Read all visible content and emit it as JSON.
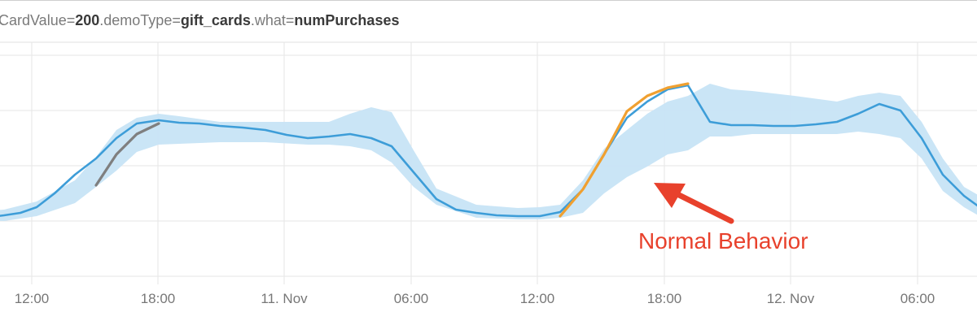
{
  "title": {
    "k1": "CardValue=",
    "v1": "200",
    "k2": ".demoType=",
    "v2": "gift_cards",
    "k3": ".what=",
    "v3": "numPurchases"
  },
  "chart_data": {
    "type": "line",
    "x_ticks": [
      "12:00",
      "18:00",
      "11. Nov",
      "06:00",
      "12:00",
      "18:00",
      "12. Nov",
      "06:00"
    ],
    "grid": true,
    "series": [
      {
        "role": "actual",
        "color": "#3d9dd8",
        "points": [
          [
            -50,
            263
          ],
          [
            -30,
            266
          ],
          [
            -11,
            267
          ],
          [
            5,
            265
          ],
          [
            25,
            262
          ],
          [
            45,
            255
          ],
          [
            67,
            238
          ],
          [
            92,
            215
          ],
          [
            118,
            195
          ],
          [
            143,
            170
          ],
          [
            168,
            152
          ],
          [
            195,
            148
          ],
          [
            220,
            151
          ],
          [
            245,
            152
          ],
          [
            270,
            155
          ],
          [
            298,
            157
          ],
          [
            326,
            160
          ],
          [
            352,
            166
          ],
          [
            378,
            170
          ],
          [
            404,
            168
          ],
          [
            430,
            165
          ],
          [
            456,
            170
          ],
          [
            481,
            180
          ],
          [
            508,
            212
          ],
          [
            536,
            245
          ],
          [
            560,
            258
          ],
          [
            585,
            262
          ],
          [
            610,
            265
          ],
          [
            636,
            266
          ],
          [
            663,
            266
          ],
          [
            688,
            261
          ],
          [
            716,
            233
          ],
          [
            742,
            190
          ],
          [
            770,
            145
          ],
          [
            795,
            125
          ],
          [
            820,
            110
          ],
          [
            845,
            105
          ],
          [
            872,
            150
          ],
          [
            898,
            154
          ],
          [
            924,
            154
          ],
          [
            950,
            155
          ],
          [
            976,
            155
          ],
          [
            1002,
            153
          ],
          [
            1028,
            150
          ],
          [
            1054,
            140
          ],
          [
            1080,
            128
          ],
          [
            1106,
            136
          ],
          [
            1132,
            170
          ],
          [
            1158,
            215
          ],
          [
            1184,
            241
          ],
          [
            1210,
            260
          ]
        ]
      },
      {
        "role": "highlight-gray",
        "color": "#7f7f7f",
        "points": [
          [
            118,
            228
          ],
          [
            143,
            190
          ],
          [
            168,
            165
          ],
          [
            195,
            152
          ]
        ]
      },
      {
        "role": "anomaly",
        "color": "#f0a030",
        "points": [
          [
            688,
            266
          ],
          [
            716,
            233
          ],
          [
            742,
            190
          ],
          [
            770,
            137
          ],
          [
            795,
            118
          ],
          [
            820,
            108
          ],
          [
            845,
            103
          ]
        ]
      }
    ],
    "band": {
      "color": "#c7e4f6",
      "upper": [
        [
          -50,
          262
        ],
        [
          5,
          258
        ],
        [
          45,
          248
        ],
        [
          92,
          222
        ],
        [
          118,
          193
        ],
        [
          143,
          160
        ],
        [
          168,
          145
        ],
        [
          195,
          140
        ],
        [
          220,
          143
        ],
        [
          270,
          150
        ],
        [
          326,
          150
        ],
        [
          378,
          150
        ],
        [
          404,
          150
        ],
        [
          430,
          140
        ],
        [
          456,
          132
        ],
        [
          481,
          138
        ],
        [
          508,
          185
        ],
        [
          536,
          232
        ],
        [
          585,
          252
        ],
        [
          636,
          256
        ],
        [
          663,
          255
        ],
        [
          688,
          252
        ],
        [
          716,
          222
        ],
        [
          742,
          183
        ],
        [
          770,
          160
        ],
        [
          795,
          140
        ],
        [
          820,
          125
        ],
        [
          845,
          118
        ],
        [
          872,
          103
        ],
        [
          898,
          110
        ],
        [
          924,
          112
        ],
        [
          976,
          118
        ],
        [
          1028,
          125
        ],
        [
          1054,
          118
        ],
        [
          1080,
          114
        ],
        [
          1106,
          118
        ],
        [
          1132,
          150
        ],
        [
          1158,
          195
        ],
        [
          1184,
          230
        ],
        [
          1210,
          245
        ]
      ],
      "lower": [
        [
          -50,
          270
        ],
        [
          5,
          272
        ],
        [
          45,
          266
        ],
        [
          92,
          250
        ],
        [
          118,
          230
        ],
        [
          143,
          210
        ],
        [
          168,
          187
        ],
        [
          195,
          178
        ],
        [
          220,
          177
        ],
        [
          270,
          175
        ],
        [
          326,
          175
        ],
        [
          378,
          178
        ],
        [
          404,
          178
        ],
        [
          430,
          180
        ],
        [
          456,
          185
        ],
        [
          481,
          200
        ],
        [
          508,
          230
        ],
        [
          536,
          252
        ],
        [
          585,
          268
        ],
        [
          636,
          270
        ],
        [
          663,
          270
        ],
        [
          688,
          268
        ],
        [
          716,
          262
        ],
        [
          742,
          238
        ],
        [
          770,
          218
        ],
        [
          795,
          205
        ],
        [
          820,
          190
        ],
        [
          845,
          185
        ],
        [
          872,
          168
        ],
        [
          898,
          168
        ],
        [
          924,
          165
        ],
        [
          976,
          165
        ],
        [
          1028,
          165
        ],
        [
          1054,
          162
        ],
        [
          1080,
          165
        ],
        [
          1106,
          170
        ],
        [
          1132,
          195
        ],
        [
          1158,
          235
        ],
        [
          1184,
          255
        ],
        [
          1210,
          270
        ]
      ]
    },
    "annotation": {
      "text": "Normal Behavior",
      "color": "#e8412c"
    }
  }
}
